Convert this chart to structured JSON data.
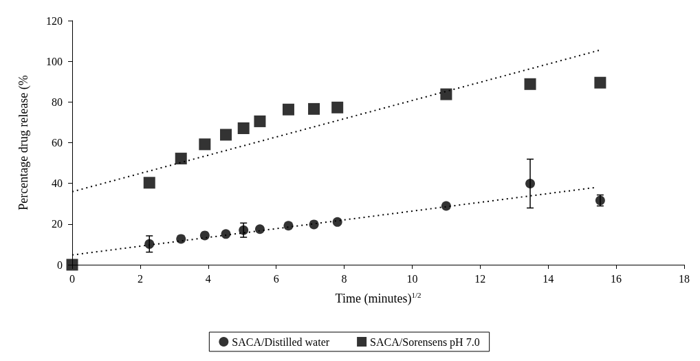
{
  "chart_data": {
    "type": "scatter",
    "xlabel": "Time (minutes)$^{1/2}$",
    "ylabel": "Percentage drug release (%",
    "xlim": [
      0,
      18
    ],
    "xticks": [
      0,
      2,
      4,
      6,
      8,
      10,
      12,
      14,
      16,
      18
    ],
    "ylim": [
      0,
      120
    ],
    "yticks": [
      0,
      20,
      40,
      60,
      80,
      100,
      120
    ],
    "grid": false,
    "legend": "bottom",
    "series": [
      {
        "name": "SACA/Distilled water",
        "color": "#000000",
        "marker": "circle",
        "x": [
          2.27,
          3.2,
          3.9,
          4.52,
          5.04,
          5.52,
          6.36,
          7.11,
          7.8,
          11.0,
          13.47,
          15.53
        ],
        "values": [
          10.2,
          12.7,
          14.4,
          15.1,
          17.0,
          17.5,
          19.2,
          19.8,
          21.0,
          28.9,
          39.9,
          31.6
        ],
        "errors": [
          4,
          null,
          null,
          null,
          3.5,
          null,
          null,
          null,
          null,
          null,
          12,
          2.7
        ]
      },
      {
        "name": "SACA/Sorensens pH 7.0",
        "color": "#000000",
        "marker": "square",
        "x": [
          0,
          2.27,
          3.2,
          3.9,
          4.52,
          5.04,
          5.52,
          6.36,
          7.11,
          7.8,
          11.0,
          13.47,
          15.53
        ],
        "values": [
          0,
          40.3,
          52.2,
          59.2,
          63.9,
          67.1,
          70.5,
          76.3,
          76.6,
          77.3,
          83.8,
          88.8,
          89.5
        ]
      },
      {
        "type": "line",
        "color": "#000000",
        "marker": "none",
        "line_style": "dotted",
        "x": [
          0,
          15.4
        ],
        "values": [
          4.8,
          38.0
        ]
      },
      {
        "type": "line",
        "color": "#000000",
        "marker": "none",
        "line_style": "dotted",
        "x": [
          0,
          15.5
        ],
        "values": [
          35.9,
          105.4
        ]
      }
    ]
  }
}
